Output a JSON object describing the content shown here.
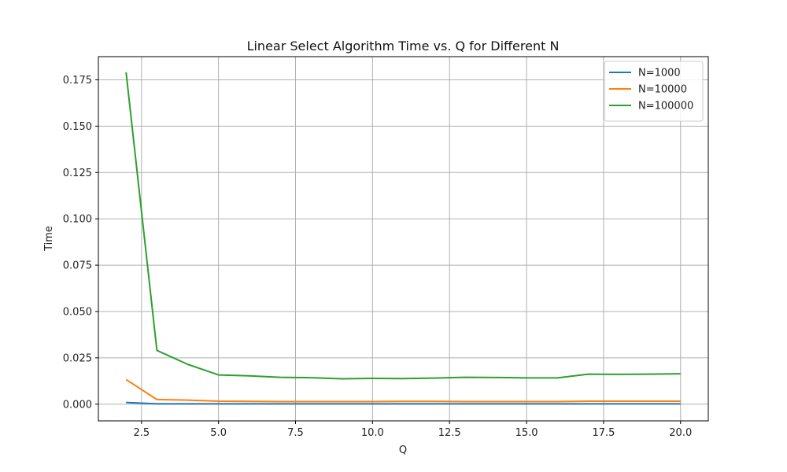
{
  "chart_data": {
    "type": "line",
    "title": "Linear Select Algorithm Time vs. Q for Different N",
    "xlabel": "Q",
    "ylabel": "Time",
    "xlim": [
      1.1,
      20.9
    ],
    "ylim": [
      -0.009,
      0.1875
    ],
    "xticks": [
      2.5,
      5.0,
      7.5,
      10.0,
      12.5,
      15.0,
      17.5,
      20.0
    ],
    "xtick_labels": [
      "2.5",
      "5.0",
      "7.5",
      "10.0",
      "12.5",
      "15.0",
      "17.5",
      "20.0"
    ],
    "yticks": [
      0.0,
      0.025,
      0.05,
      0.075,
      0.1,
      0.125,
      0.15,
      0.175
    ],
    "ytick_labels": [
      "0.000",
      "0.025",
      "0.050",
      "0.075",
      "0.100",
      "0.125",
      "0.150",
      "0.175"
    ],
    "grid": true,
    "legend_position": "top-right",
    "x": [
      2,
      3,
      4,
      5,
      6,
      7,
      8,
      9,
      10,
      11,
      12,
      13,
      14,
      15,
      16,
      17,
      18,
      19,
      20
    ],
    "series": [
      {
        "name": "N=1000",
        "color": "#1f77b4",
        "values": [
          0.0009,
          0.0002,
          0.0002,
          0.0002,
          0.0002,
          0.0002,
          0.0002,
          0.0002,
          0.0002,
          0.0002,
          0.0002,
          0.0002,
          0.0002,
          0.0002,
          0.0002,
          0.0002,
          0.0002,
          0.0002,
          0.0002
        ]
      },
      {
        "name": "N=10000",
        "color": "#ff7f0e",
        "values": [
          0.0133,
          0.0025,
          0.0022,
          0.0016,
          0.0015,
          0.0014,
          0.0014,
          0.0014,
          0.0014,
          0.0015,
          0.0015,
          0.0014,
          0.0014,
          0.0014,
          0.0014,
          0.0016,
          0.0016,
          0.0016,
          0.0016
        ]
      },
      {
        "name": "N=100000",
        "color": "#2ca02c",
        "values": [
          0.179,
          0.029,
          0.0215,
          0.0158,
          0.0153,
          0.0145,
          0.0143,
          0.0137,
          0.0139,
          0.0138,
          0.0141,
          0.0145,
          0.0144,
          0.0142,
          0.0142,
          0.0162,
          0.0161,
          0.0162,
          0.0164
        ]
      }
    ]
  }
}
